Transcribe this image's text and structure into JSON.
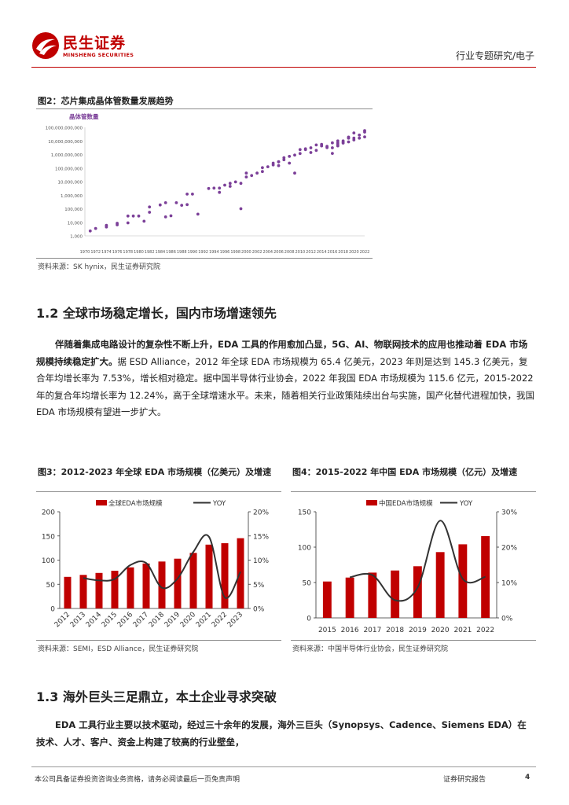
{
  "header": {
    "logo_cn": "民生证券",
    "logo_en": "MINSHENG SECURITIES",
    "category": "行业专题研究/电子"
  },
  "fig2": {
    "title": "图2：芯片集成晶体管数量发展趋势",
    "source": "资料来源：SK hynix，民生证券研究院",
    "chart_data": {
      "type": "scatter",
      "title": "",
      "ylabel": "晶体管数量",
      "yscale": "log",
      "ylim": [
        1000,
        100000000000
      ],
      "yticks": [
        "1,000",
        "10,000",
        "100,000",
        "1,000,000",
        "10,000,000",
        "100,000,000",
        "1,000,000,000",
        "10,000,000,000",
        "100,000,000,000"
      ],
      "xticks": [
        "1970",
        "1972",
        "1974",
        "1976",
        "1978",
        "1980",
        "1982",
        "1984",
        "1986",
        "1988",
        "1990",
        "1992",
        "1994",
        "1996",
        "1998",
        "2000",
        "2002",
        "2004",
        "2006",
        "2008",
        "2010",
        "2012",
        "2014",
        "2016",
        "2018",
        "2020",
        "2022"
      ],
      "points": [
        [
          1971,
          2300
        ],
        [
          1972,
          3500
        ],
        [
          1974,
          4500
        ],
        [
          1974,
          6000
        ],
        [
          1976,
          6500
        ],
        [
          1976,
          8500
        ],
        [
          1978,
          9000
        ],
        [
          1978,
          29000
        ],
        [
          1979,
          29000
        ],
        [
          1980,
          29000
        ],
        [
          1981,
          12000
        ],
        [
          1982,
          55000
        ],
        [
          1982,
          134000
        ],
        [
          1984,
          190000
        ],
        [
          1985,
          275000
        ],
        [
          1985,
          25000
        ],
        [
          1986,
          30000
        ],
        [
          1987,
          275000
        ],
        [
          1988,
          180000
        ],
        [
          1989,
          1200000
        ],
        [
          1989,
          200000
        ],
        [
          1990,
          1200000
        ],
        [
          1991,
          40000
        ],
        [
          1993,
          3100000
        ],
        [
          1994,
          3300000
        ],
        [
          1995,
          3300000
        ],
        [
          1995,
          1600000
        ],
        [
          1996,
          5500000
        ],
        [
          1997,
          7500000
        ],
        [
          1997,
          4500000
        ],
        [
          1998,
          9500000
        ],
        [
          1999,
          7500000
        ],
        [
          1999,
          100000
        ],
        [
          2000,
          22000000
        ],
        [
          2000,
          42000000
        ],
        [
          2001,
          28000000
        ],
        [
          2002,
          42000000
        ],
        [
          2003,
          55000000
        ],
        [
          2003,
          106000000
        ],
        [
          2004,
          125000000
        ],
        [
          2005,
          230000000
        ],
        [
          2005,
          170000000
        ],
        [
          2006,
          290000000
        ],
        [
          2006,
          290000000
        ],
        [
          2006,
          150000000
        ],
        [
          2007,
          410000000
        ],
        [
          2007,
          580000000
        ],
        [
          2008,
          230000000
        ],
        [
          2008,
          730000000
        ],
        [
          2009,
          42000000
        ],
        [
          2009,
          900000000
        ],
        [
          2010,
          1170000000
        ],
        [
          2010,
          2300000000
        ],
        [
          2011,
          2600000000
        ],
        [
          2011,
          2300000000
        ],
        [
          2012,
          3100000000
        ],
        [
          2012,
          1400000000
        ],
        [
          2013,
          5000000000
        ],
        [
          2013,
          2000000000
        ],
        [
          2014,
          5500000000
        ],
        [
          2014,
          4300000000
        ],
        [
          2015,
          3200000000
        ],
        [
          2015,
          4000000000
        ],
        [
          2016,
          7200000000
        ],
        [
          2016,
          1200000000
        ],
        [
          2016,
          3100000000
        ],
        [
          2017,
          7000000000
        ],
        [
          2017,
          10000000000
        ],
        [
          2017,
          4300000000
        ],
        [
          2017,
          5300000000
        ],
        [
          2018,
          8000000000
        ],
        [
          2018,
          6900000000
        ],
        [
          2018,
          10000000000
        ],
        [
          2019,
          8500000000
        ],
        [
          2019,
          19000000000
        ],
        [
          2019,
          16000000000
        ],
        [
          2020,
          16000000000
        ],
        [
          2020,
          11800000000
        ],
        [
          2020,
          39000000000
        ],
        [
          2021,
          16000000000
        ],
        [
          2021,
          27000000000
        ],
        [
          2022,
          57000000000
        ],
        [
          2022,
          20000000000
        ],
        [
          2022,
          45000000000
        ]
      ],
      "color": "#7b3f98"
    }
  },
  "section12": {
    "title": "1.2 全球市场稳定增长，国内市场增速领先",
    "para_bold": "伴随着集成电路设计的复杂性不断上升，EDA 工具的作用愈加凸显，5G、AI、物联网技术的应用也推动着 EDA 市场规模持续稳定扩大。",
    "para_rest": "据 ESD Alliance，2012 年全球 EDA 市场规模为 65.4 亿美元，2023 年则是达到 145.3 亿美元，复合年均增长率为 7.53%，增长相对稳定。据中国半导体行业协会，2022 年我国 EDA 市场规模为 115.6 亿元，2015-2022 年的复合年均增长率为 12.24%，高于全球增速水平。未来，随着相关行业政策陆续出台与实施，国产化替代进程加快，我国 EDA 市场规模有望进一步扩大。"
  },
  "fig3": {
    "title": "图3：2012-2023 年全球 EDA 市场规模（亿美元）及增速",
    "source": "资料来源：SEMI，ESD Alliance，民生证券研究院",
    "chart_data": {
      "type": "bar",
      "categories": [
        "2012",
        "2013",
        "2014",
        "2015",
        "2016",
        "2017",
        "2018",
        "2019",
        "2020",
        "2021",
        "2022",
        "2023"
      ],
      "series": [
        {
          "name": "全球EDA市场规模",
          "type": "bar",
          "axis": "left",
          "color": "#c00000",
          "values": [
            65.4,
            69.5,
            73.5,
            78.0,
            85.0,
            93.0,
            97.0,
            103.0,
            115.0,
            132.0,
            135.0,
            145.3
          ]
        },
        {
          "name": "YOY",
          "type": "line",
          "axis": "right",
          "color": "#333333",
          "values": [
            null,
            6.3,
            5.8,
            6.1,
            9.0,
            9.4,
            4.3,
            6.2,
            11.7,
            14.8,
            2.3,
            7.6
          ]
        }
      ],
      "ylim_left": [
        0,
        200
      ],
      "yticks_left": [
        "0",
        "50",
        "100",
        "150",
        "200"
      ],
      "ylim_right": [
        0,
        20
      ],
      "yticks_right": [
        "0%",
        "5%",
        "10%",
        "15%",
        "20%"
      ]
    }
  },
  "fig4": {
    "title": "图4：2015-2022 年中国 EDA 市场规模（亿元）及增速",
    "source": "资料来源：中国半导体行业协会，民生证券研究院",
    "chart_data": {
      "type": "bar",
      "categories": [
        "2015",
        "2016",
        "2017",
        "2018",
        "2019",
        "2020",
        "2021",
        "2022"
      ],
      "series": [
        {
          "name": "中国EDA市场规模",
          "type": "bar",
          "axis": "left",
          "color": "#c00000",
          "values": [
            51.5,
            57.0,
            64.0,
            67.0,
            73.0,
            93.0,
            104.0,
            115.6
          ]
        },
        {
          "name": "YOY",
          "type": "line",
          "axis": "right",
          "color": "#333333",
          "values": [
            null,
            11.5,
            12.1,
            5.0,
            8.6,
            27.5,
            11.0,
            11.6
          ]
        }
      ],
      "ylim_left": [
        0,
        150
      ],
      "yticks_left": [
        "0",
        "50",
        "100",
        "150"
      ],
      "ylim_right": [
        0,
        30
      ],
      "yticks_right": [
        "0%",
        "10%",
        "20%",
        "30%"
      ]
    }
  },
  "section13": {
    "title": "1.3 海外巨头三足鼎立，本土企业寻求突破",
    "para_bold": "EDA 工具行业主要以技术驱动，经过三十余年的发展，海外三巨头（Synopsys、Cadence、Siemens EDA）在技术、人才、客户、资金上构建了较高的行业壁垒，"
  },
  "footer": {
    "disclaimer": "本公司具备证券投资咨询业务资格，请务必阅读最后一页免责声明",
    "report_type": "证券研究报告",
    "page": "4"
  }
}
